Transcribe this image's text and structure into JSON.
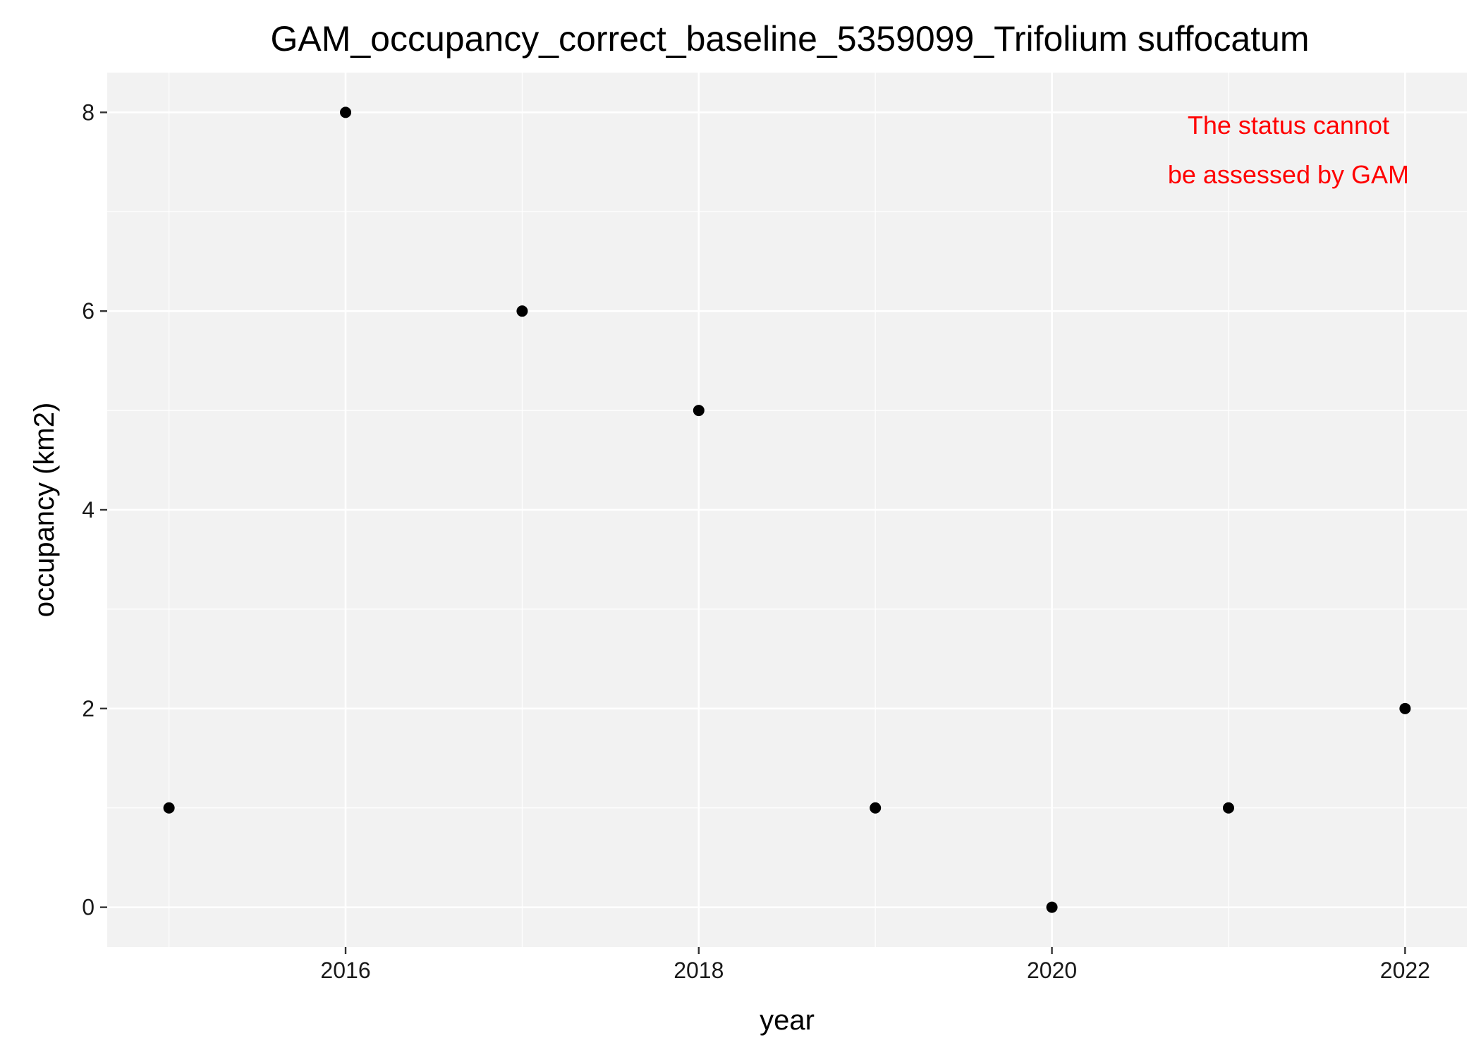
{
  "chart_data": {
    "type": "scatter",
    "title": "GAM_occupancy_correct_baseline_5359099_Trifolium suffocatum",
    "xlabel": "year",
    "ylabel": "occupancy (km2)",
    "x": [
      2015,
      2016,
      2017,
      2018,
      2019,
      2020,
      2021,
      2022
    ],
    "y": [
      1,
      8,
      6,
      5,
      1,
      0,
      1,
      2
    ],
    "xlim": [
      2014.65,
      2022.35
    ],
    "ylim": [
      -0.4,
      8.4
    ],
    "x_ticks": [
      2016,
      2018,
      2020,
      2022
    ],
    "y_ticks": [
      0,
      2,
      4,
      6,
      8
    ],
    "x_tick_labels": [
      "2016",
      "2018",
      "2020",
      "2022"
    ],
    "y_tick_labels": [
      "0",
      "2",
      "4",
      "6",
      "8"
    ],
    "grid": true,
    "legend": "none",
    "annotation": {
      "lines": [
        "The status cannot",
        "be assessed by GAM"
      ],
      "color": "#ff0000",
      "placement": "top-right"
    },
    "colors": {
      "panel_background": "#f2f2f2",
      "grid": "#ffffff",
      "point": "#000000"
    }
  }
}
